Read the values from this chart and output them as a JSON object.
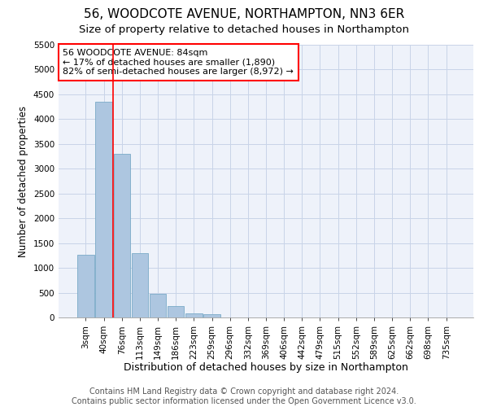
{
  "title": "56, WOODCOTE AVENUE, NORTHAMPTON, NN3 6ER",
  "subtitle": "Size of property relative to detached houses in Northampton",
  "xlabel": "Distribution of detached houses by size in Northampton",
  "ylabel": "Number of detached properties",
  "bar_labels": [
    "3sqm",
    "40sqm",
    "76sqm",
    "113sqm",
    "149sqm",
    "186sqm",
    "223sqm",
    "259sqm",
    "296sqm",
    "332sqm",
    "369sqm",
    "406sqm",
    "442sqm",
    "479sqm",
    "515sqm",
    "552sqm",
    "589sqm",
    "625sqm",
    "662sqm",
    "698sqm",
    "735sqm"
  ],
  "bar_values": [
    1270,
    4350,
    3300,
    1300,
    480,
    230,
    90,
    70,
    0,
    0,
    0,
    0,
    0,
    0,
    0,
    0,
    0,
    0,
    0,
    0,
    0
  ],
  "bar_color": "#adc6e0",
  "bar_edge_color": "#7aaac8",
  "grid_color": "#c8d4e8",
  "bg_color": "#eef2fa",
  "annotation_line1": "56 WOODCOTE AVENUE: 84sqm",
  "annotation_line2": "← 17% of detached houses are smaller (1,890)",
  "annotation_line3": "82% of semi-detached houses are larger (8,972) →",
  "annotation_box_color": "white",
  "annotation_box_edge": "red",
  "red_line_x": 1.5,
  "ylim_max": 5500,
  "yticks": [
    0,
    500,
    1000,
    1500,
    2000,
    2500,
    3000,
    3500,
    4000,
    4500,
    5000,
    5500
  ],
  "footer_text": "Contains HM Land Registry data © Crown copyright and database right 2024.\nContains public sector information licensed under the Open Government Licence v3.0.",
  "title_fontsize": 11,
  "subtitle_fontsize": 9.5,
  "xlabel_fontsize": 9,
  "ylabel_fontsize": 8.5,
  "tick_fontsize": 7.5,
  "annotation_fontsize": 8,
  "footer_fontsize": 7
}
